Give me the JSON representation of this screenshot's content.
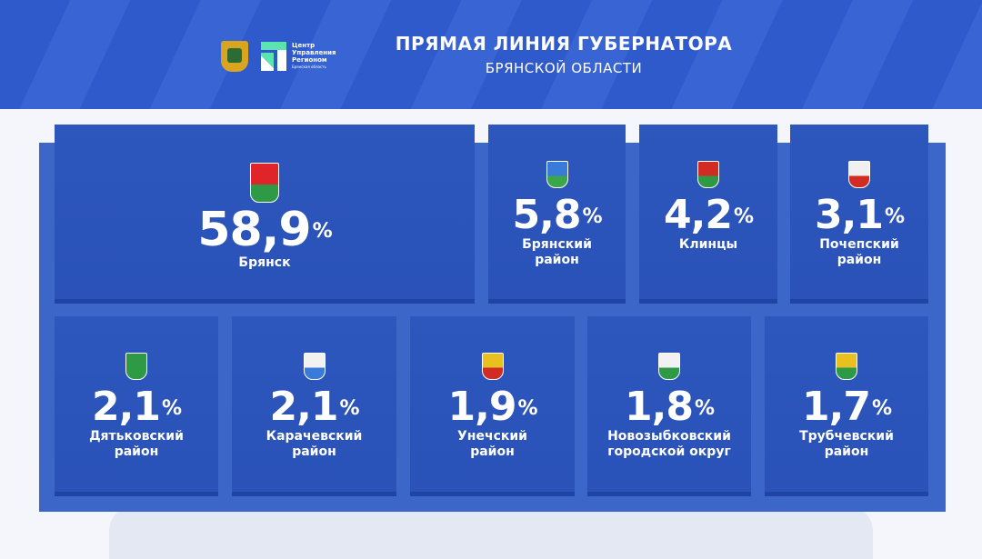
{
  "header": {
    "title": "ПРЯМАЯ ЛИНИЯ ГУБЕРНАТОРА",
    "subtitle": "БРЯНСКОЙ ОБЛАСТИ",
    "logo_text": [
      "Центр",
      "Управления",
      "Регионом"
    ],
    "logo_sub": "Брянская область"
  },
  "colors": {
    "background": "#3c66c8",
    "card": "#2d57bd",
    "text": "#ffffff"
  },
  "cards": [
    {
      "value": "58,9",
      "unit": "%",
      "label": [
        "Брянск"
      ],
      "emblem": [
        "#e0252a",
        "#2e9a45"
      ]
    },
    {
      "value": "5,8",
      "unit": "%",
      "label": [
        "Брянский",
        "район"
      ],
      "emblem": [
        "#3a7ad8",
        "#3ca64b"
      ]
    },
    {
      "value": "4,2",
      "unit": "%",
      "label": [
        "Клинцы"
      ],
      "emblem": [
        "#d22b23",
        "#2e9a45"
      ]
    },
    {
      "value": "3,1",
      "unit": "%",
      "label": [
        "Почепский",
        "район"
      ],
      "emblem": [
        "#f0f0f0",
        "#d22b23"
      ]
    },
    {
      "value": "2,1",
      "unit": "%",
      "label": [
        "Дятьковский",
        "район"
      ],
      "emblem": [
        "#2e9a45",
        "#2e9a45"
      ]
    },
    {
      "value": "2,1",
      "unit": "%",
      "label": [
        "Карачевский",
        "район"
      ],
      "emblem": [
        "#f2f2f2",
        "#3a7ad8"
      ]
    },
    {
      "value": "1,9",
      "unit": "%",
      "label": [
        "Унечский",
        "район"
      ],
      "emblem": [
        "#e8c020",
        "#d22b23"
      ]
    },
    {
      "value": "1,8",
      "unit": "%",
      "label": [
        "Новозыбковский",
        "городской округ"
      ],
      "emblem": [
        "#f2f2f2",
        "#2e9a45"
      ]
    },
    {
      "value": "1,7",
      "unit": "%",
      "label": [
        "Трубчевский",
        "район"
      ],
      "emblem": [
        "#e8c020",
        "#2e9a45"
      ]
    }
  ]
}
